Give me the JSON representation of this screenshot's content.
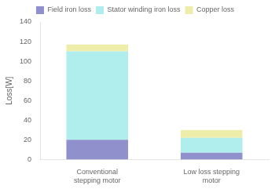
{
  "chart_data": {
    "type": "bar",
    "categories": [
      "Conventional\nstepping motor",
      "Low loss stepping\nmotor"
    ],
    "series": [
      {
        "name": "Field iron loss",
        "color": "#9090cc",
        "values": [
          20,
          7
        ]
      },
      {
        "name": "Stator winding iron loss",
        "color": "#b0eeee",
        "values": [
          90,
          15
        ]
      },
      {
        "name": "Copper loss",
        "color": "#eeeeaa",
        "values": [
          7,
          8
        ]
      }
    ],
    "ylabel": "Loss[W]",
    "ylim": [
      0,
      140
    ],
    "yticks": [
      0,
      20,
      40,
      60,
      80,
      100,
      120,
      140
    ],
    "stacked": true,
    "grid": false,
    "legend": "top"
  }
}
